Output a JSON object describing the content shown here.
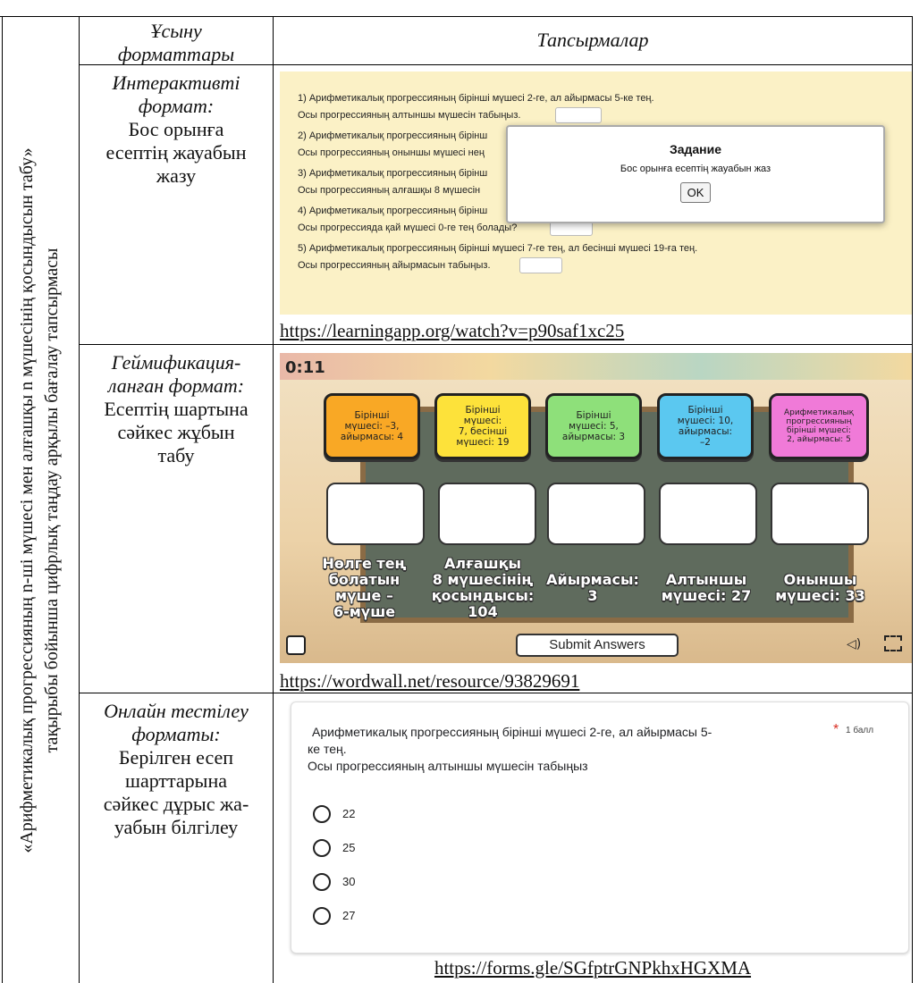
{
  "side_heading": [
    "«Арифметикалық прогрессияның n-ші мүшесі мен алғашқы n мүшесінің қосындысын табу»",
    "тақырыбы бойынша цифрлық таңдау арқылы бағалау тапсырмасы"
  ],
  "table": {
    "headers": [
      [
        "Ұсыну",
        "форматтары"
      ],
      "Тапсырмалар"
    ],
    "rows": [
      {
        "format_title": [
          "Интерактивті",
          "формат:"
        ],
        "format_desc": [
          "Бос орынға",
          "есептің жауабын",
          "жазу"
        ],
        "screen": {
          "lines": [
            "1) Арифметикалық прогрессияның бірінші мүшесі 2-ге, ал айырмасы 5-ке тең.",
            "Осы прогрессияның алтыншы мүшесін табыңыз.",
            "2) Арифметикалық прогрессияның бірінш",
            "Осы прогрессияның оныншы мүшесі нең",
            "3) Арифметикалық прогрессияның бірінш",
            "Осы прогрессияның алғашқы 8 мүшесін",
            "4) Арифметикалық прогрессияның бірінш",
            "Осы прогрессияда қай мүшесі 0-ге тең болады?",
            "5) Арифметикалық прогрессияның бірінші мүшесі 7-ге тең, ал бесінші мүшесі 19-ға тең.",
            "Осы прогрессияның айырмасын табыңыз."
          ],
          "dialog": {
            "title": "Задание",
            "text": "Бос орынға есептің жауабын жаз",
            "button": "OK"
          }
        },
        "link": "https://learningapp.org/watch?v=p90saf1xc25"
      },
      {
        "format_title": [
          "Геймификация-",
          "ланған формат:"
        ],
        "format_desc": [
          "Есептің шартына",
          "сәйкес жұбын",
          "табу"
        ],
        "screen": {
          "timer": "0:11",
          "cards": [
            [
              "Бірінші",
              "мүшесі: –3,",
              "айырмасы: 4"
            ],
            [
              "Бірінші",
              "мүшесі:",
              "7, бесінші",
              "мүшесі: 19"
            ],
            [
              "Бірінші",
              "мүшесі: 5,",
              "айырмасы: 3"
            ],
            [
              "Бірінші",
              "мүшесі: 10,",
              "айырмасы:",
              "–2"
            ],
            [
              "Арифметикалық",
              "прогрессияның",
              "бірінші мүшесі:",
              "2, айырмасы: 5"
            ]
          ],
          "answers": [
            [
              "Нөлге тең",
              "болатын",
              "мүше –",
              "6-мүше"
            ],
            [
              "Алғашқы",
              "8 мүшесінің",
              "қосындысы:",
              "104"
            ],
            [
              "Айырмасы:",
              "3"
            ],
            [
              "Алтыншы",
              "мүшесі: 27"
            ],
            [
              "Оныншы",
              "мүшесі: 33"
            ]
          ],
          "submit": "Submit Answers"
        },
        "link": "https://wordwall.net/resource/93829691"
      },
      {
        "format_title": [
          "Онлайн тестілеу",
          "форматы:"
        ],
        "format_desc": [
          "Берілген есеп",
          "шарттарына",
          "сәйкес дұрыс жа-",
          "уабын білгілеу"
        ],
        "screen": {
          "question": [
            "Арифметикалық прогрессияның бірінші мүшесі 2-ге, ал айырмасы 5-",
            "ке тең.",
            "Осы прогрессияның алтыншы мүшесін табыңыз"
          ],
          "required": "*",
          "points": "1 балл",
          "options": [
            22,
            25,
            30,
            27
          ]
        },
        "link": "https://forms.gle/SGfptrGNPkhxHGXMA"
      }
    ]
  }
}
